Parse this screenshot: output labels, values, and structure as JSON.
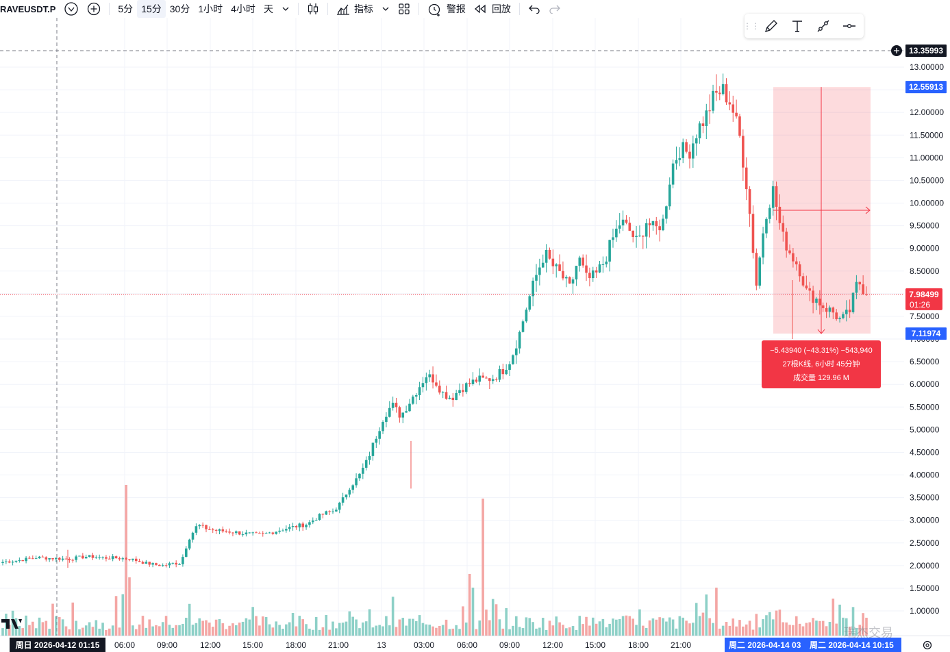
{
  "toolbar": {
    "symbol": "RAVEUSDT.P",
    "intervals": [
      "5分",
      "15分",
      "30分",
      "1小时",
      "4小时",
      "天"
    ],
    "active_interval": "15分",
    "indicators_label": "指标",
    "alert_label": "警报",
    "replay_label": "回放"
  },
  "drawing_tools": [
    "pen-tool-icon",
    "text-tool-icon",
    "trend-line-icon",
    "horizontal-line-icon"
  ],
  "price_axis": {
    "ticks": [
      "13.00000",
      "12.50000",
      "12.00000",
      "11.50000",
      "11.00000",
      "10.50000",
      "10.00000",
      "9.50000",
      "9.00000",
      "8.50000",
      "8.00000",
      "7.50000",
      "7.00000",
      "6.50000",
      "6.00000",
      "5.50000",
      "5.00000",
      "4.50000",
      "4.00000",
      "3.50000",
      "3.00000",
      "2.50000",
      "2.00000",
      "1.50000",
      "1.00000"
    ],
    "crosshair_price": "13.35993",
    "range_high": "12.55913",
    "current_price": "7.98499",
    "countdown": "01:26",
    "range_low": "7.11974"
  },
  "time_axis": {
    "ticks": [
      "06:00",
      "09:00",
      "12:00",
      "15:00",
      "18:00",
      "21:00",
      "13",
      "03:00",
      "06:00",
      "09:00",
      "12:00",
      "15:00",
      "18:00",
      "21:00"
    ],
    "crosshair_label": "周日 2026-04-12   01:15",
    "range_start_label": "周二 2026-04-14   03",
    "range_end_label": "周二 2026-04-14   10:15"
  },
  "measure": {
    "line1": "−5.43940 (−43.31%) −543,940",
    "line2": "27根K线, 6小时 45分钟",
    "line3": "成交量 129.96 M"
  },
  "watermark": "瑞杰交易",
  "colors": {
    "up": "#26a69a",
    "down": "#ef5350",
    "up_vol": "#8dd0c7",
    "down_vol": "#f4a6a4",
    "accent": "#2962ff"
  },
  "chart_data": {
    "type": "candlestick",
    "title": "RAVEUSDT.P 15分",
    "ylim": [
      0.5,
      13.5
    ],
    "xlabel": "",
    "ylabel": "",
    "key_points": [
      {
        "label": "range high",
        "value": 12.55913
      },
      {
        "label": "range low",
        "value": 7.11974
      },
      {
        "label": "last price",
        "value": 7.98499
      }
    ],
    "close_path": [
      2.08,
      2.1,
      2.12,
      2.15,
      2.18,
      2.17,
      2.16,
      2.15,
      2.15,
      2.18,
      2.2,
      2.19,
      2.17,
      2.17,
      2.16,
      2.15,
      2.1,
      2.05,
      2.02,
      2.0,
      2.05,
      2.05,
      2.6,
      2.9,
      2.82,
      2.78,
      2.76,
      2.75,
      2.72,
      2.7,
      2.68,
      2.7,
      2.75,
      2.8,
      2.84,
      2.88,
      2.92,
      3.05,
      3.15,
      3.2,
      3.4,
      3.75,
      3.95,
      4.3,
      4.8,
      5.3,
      5.55,
      5.3,
      5.6,
      5.9,
      6.2,
      6.1,
      5.8,
      5.7,
      5.9,
      6.0,
      6.1,
      6.1,
      6.15,
      6.3,
      6.55,
      7.1,
      7.8,
      8.4,
      8.9,
      8.6,
      8.4,
      8.1,
      8.8,
      8.3,
      8.4,
      8.7,
      9.2,
      9.6,
      9.4,
      9.1,
      9.6,
      9.4,
      9.6,
      10.8,
      11.2,
      11.1,
      11.6,
      11.9,
      12.35,
      12.5,
      12.2,
      11.5,
      10.2,
      8.2,
      9.7,
      10.3,
      9.3,
      8.9,
      8.6,
      8.0,
      7.9,
      7.7,
      7.6,
      7.4,
      7.6,
      8.3,
      7.98
    ]
  }
}
